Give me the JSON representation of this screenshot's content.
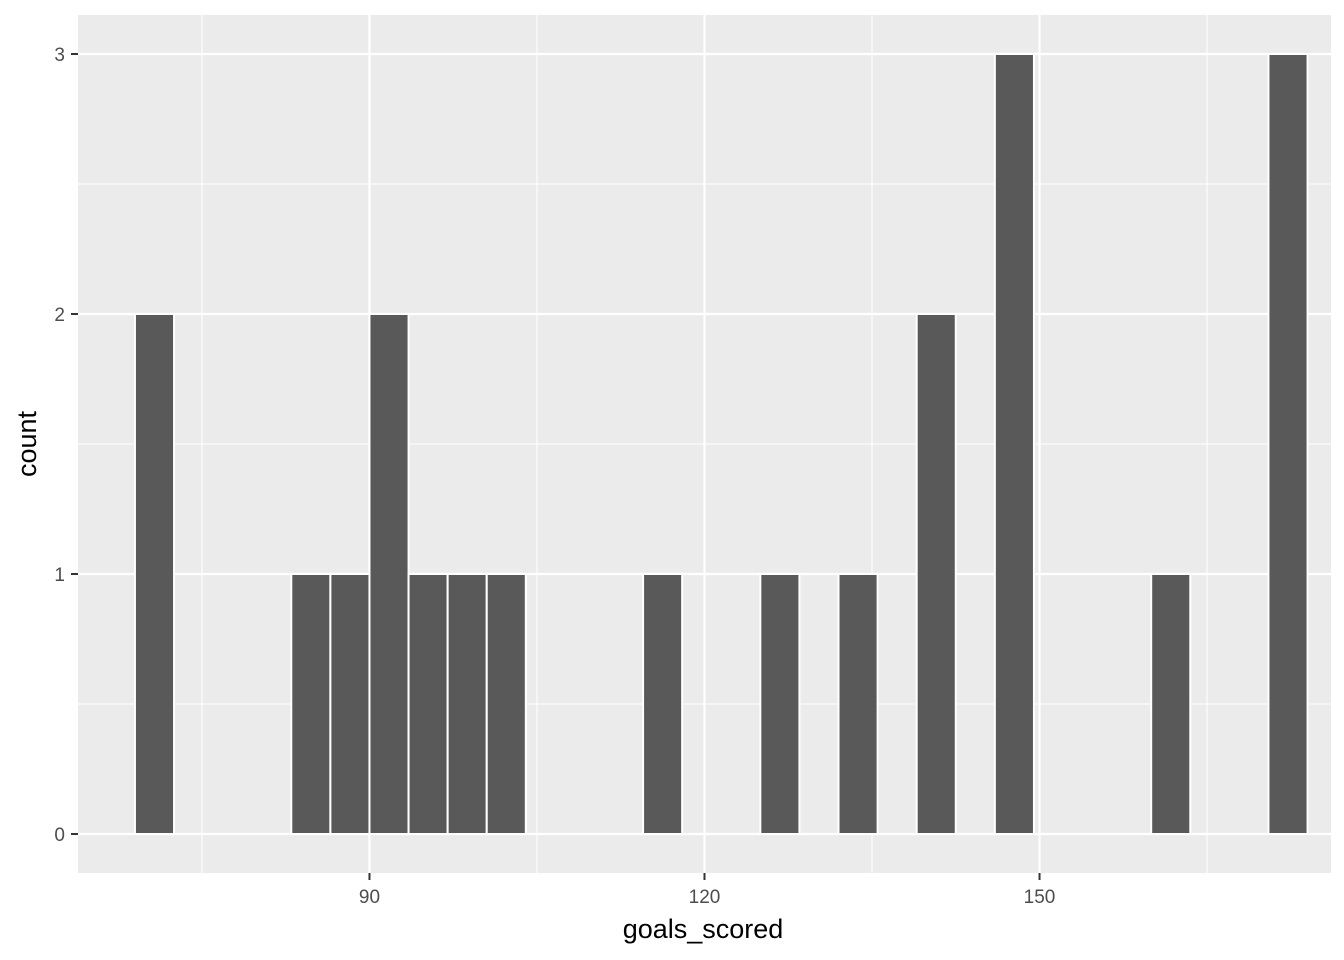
{
  "chart_data": {
    "type": "bar",
    "subtype": "histogram",
    "title": "",
    "xlabel": "goals_scored",
    "ylabel": "count",
    "xlim": [
      63.9,
      176.1
    ],
    "ylim": [
      -0.15,
      3.15
    ],
    "x_ticks": [
      90,
      120,
      150
    ],
    "y_ticks": [
      0,
      1,
      2,
      3
    ],
    "grid": true,
    "bins": [
      {
        "x0": 69.0,
        "x1": 72.5,
        "count": 2
      },
      {
        "x0": 83.0,
        "x1": 86.5,
        "count": 1
      },
      {
        "x0": 86.5,
        "x1": 90.0,
        "count": 1
      },
      {
        "x0": 90.0,
        "x1": 93.5,
        "count": 2
      },
      {
        "x0": 93.5,
        "x1": 97.0,
        "count": 1
      },
      {
        "x0": 97.0,
        "x1": 100.5,
        "count": 1
      },
      {
        "x0": 100.5,
        "x1": 104.0,
        "count": 1
      },
      {
        "x0": 114.5,
        "x1": 118.0,
        "count": 1
      },
      {
        "x0": 125.0,
        "x1": 128.5,
        "count": 1
      },
      {
        "x0": 132.0,
        "x1": 135.5,
        "count": 1
      },
      {
        "x0": 139.0,
        "x1": 142.5,
        "count": 2
      },
      {
        "x0": 146.0,
        "x1": 149.5,
        "count": 3
      },
      {
        "x0": 160.0,
        "x1": 163.5,
        "count": 1
      },
      {
        "x0": 170.5,
        "x1": 174.0,
        "count": 3
      }
    ],
    "colors": {
      "panel_background": "#ebebeb",
      "grid": "#ffffff",
      "bar_fill": "#595959",
      "bar_outline": "#ffffff",
      "tick_text": "#4d4d4d",
      "axis_title": "#000000"
    }
  }
}
